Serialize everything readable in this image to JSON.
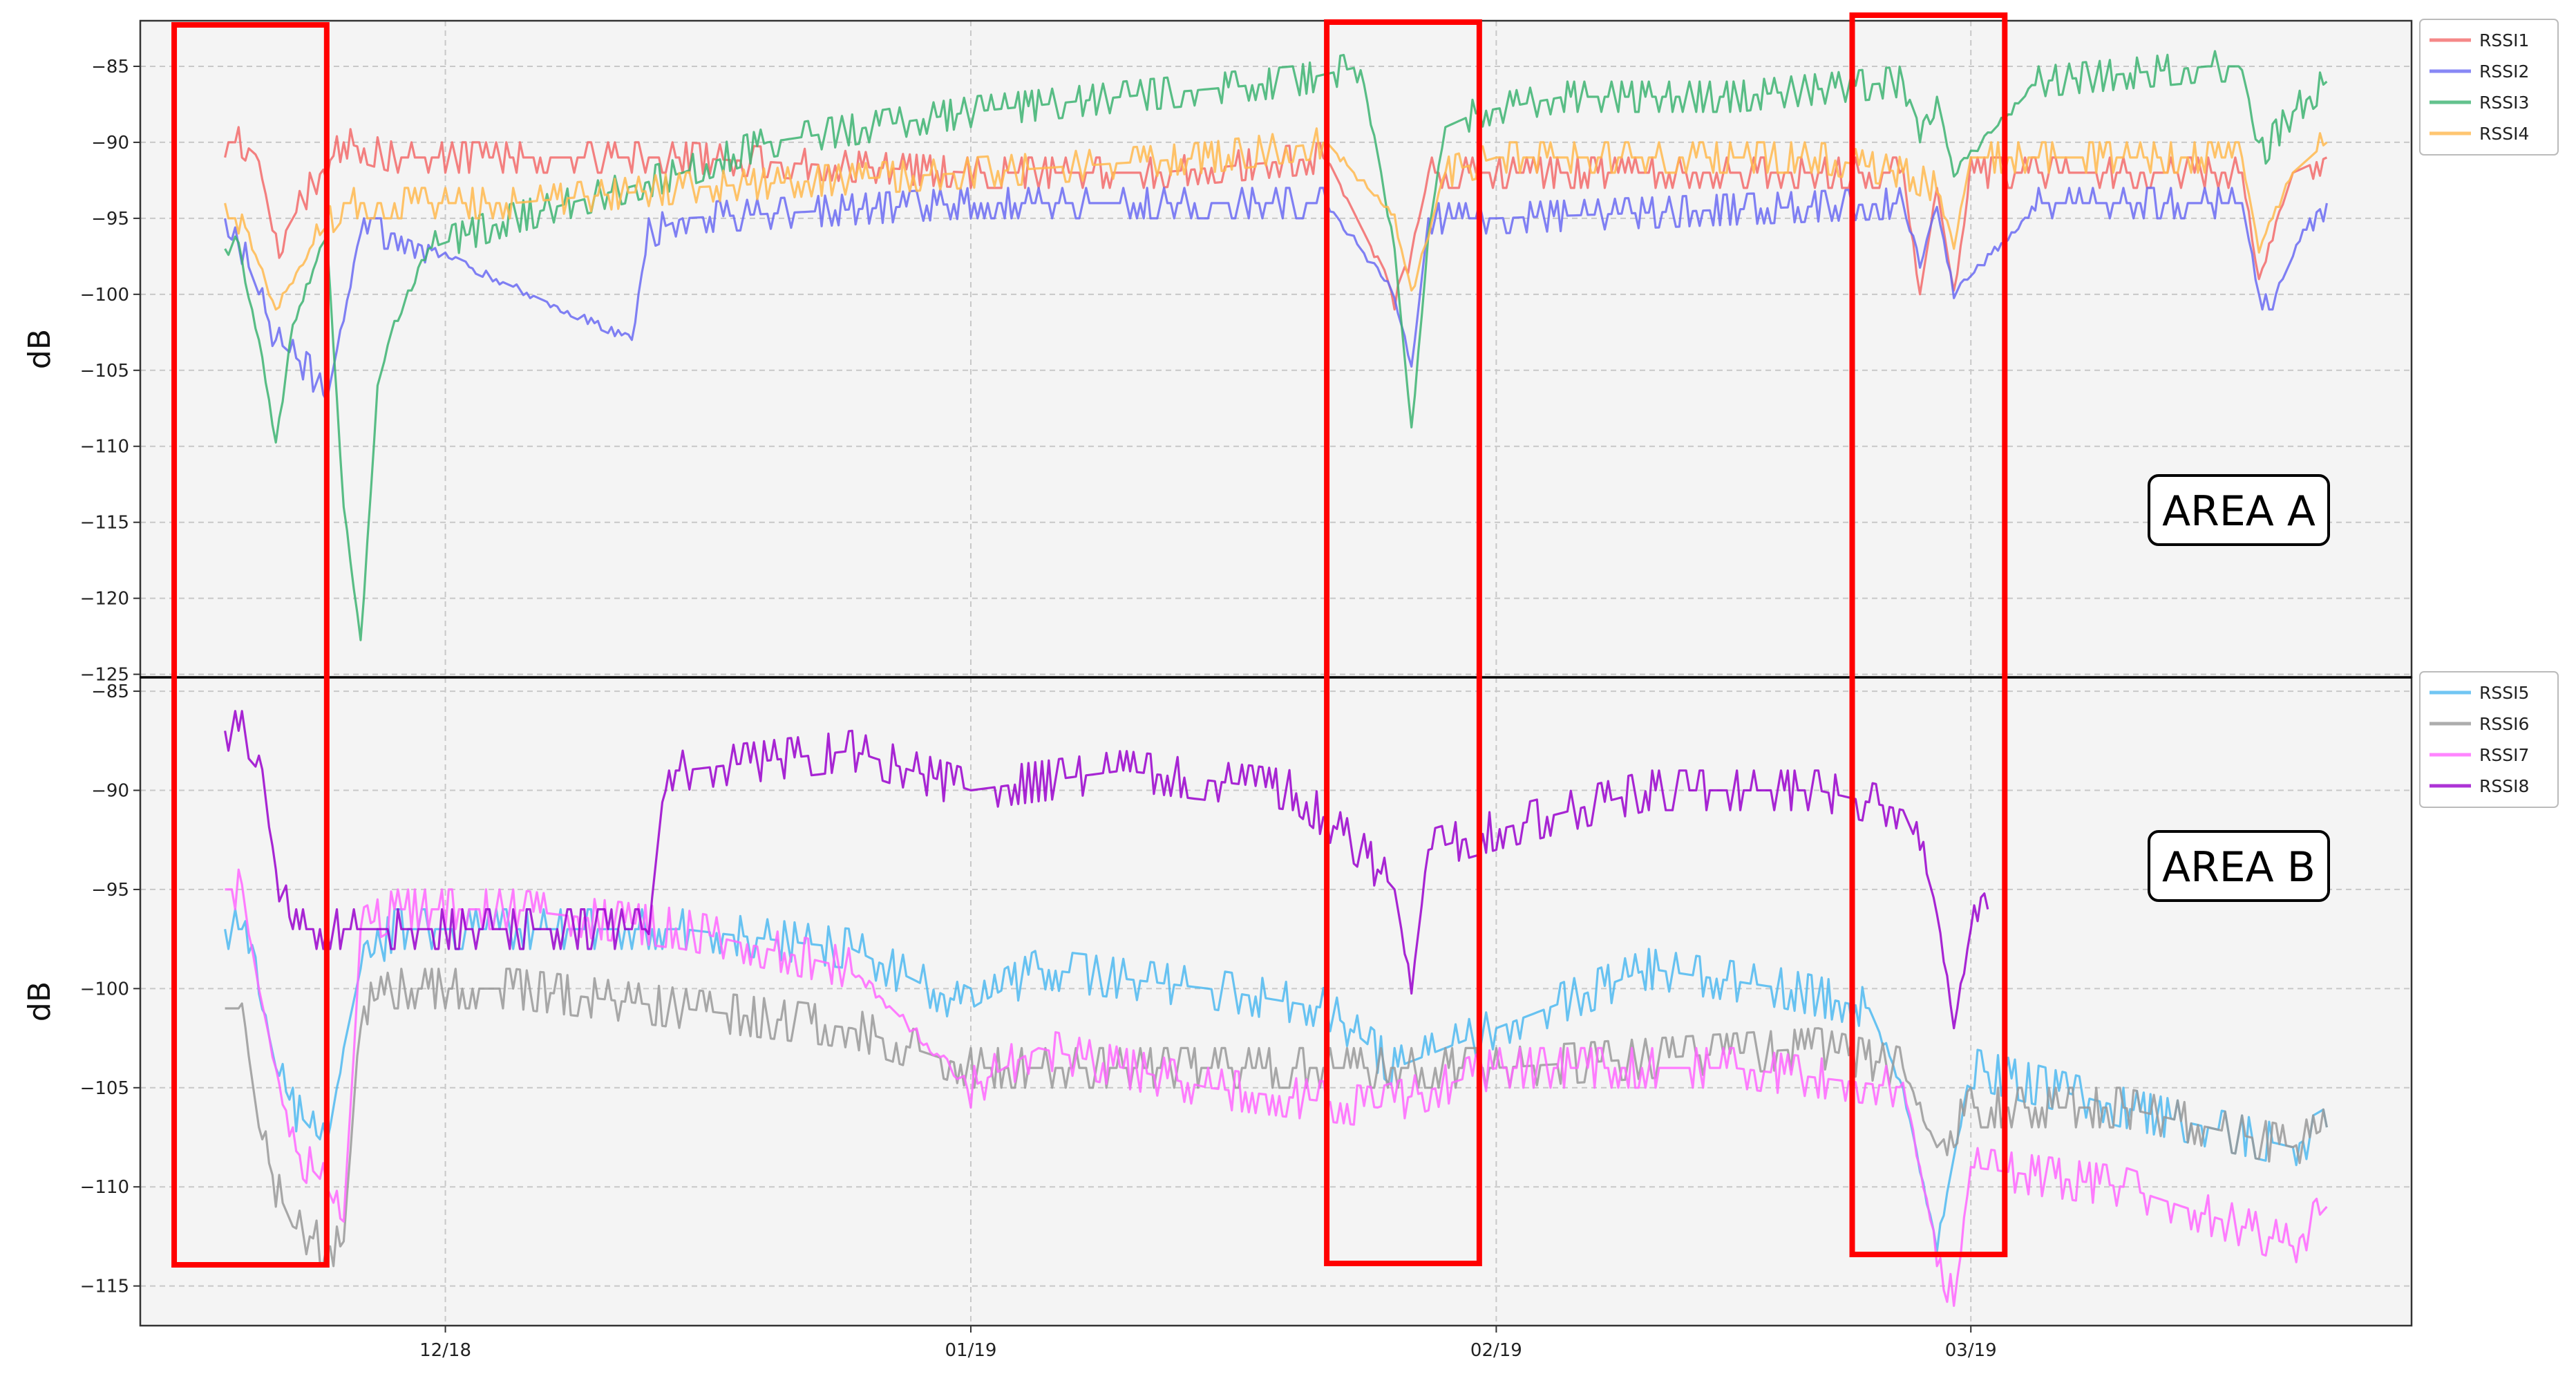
{
  "chart_data": [
    {
      "type": "line",
      "ylabel": "dB",
      "ylim": [
        -125,
        -82
      ],
      "yticks": [
        -85,
        -90,
        -95,
        -100,
        -105,
        -110,
        -115,
        -120,
        -125
      ],
      "xlim": [
        "2018-11-13",
        "2019-03-27"
      ],
      "xticks": [
        {
          "date": "2018-12-01",
          "label": "12/18"
        },
        {
          "date": "2019-01-01",
          "label": "01/19"
        },
        {
          "date": "2019-02-01",
          "label": "02/19"
        },
        {
          "date": "2019-03-01",
          "label": "03/19"
        }
      ],
      "grid": true,
      "legend_position": "outside-top-right",
      "annotation": "AREA A",
      "series": [
        {
          "name": "RSSI1",
          "color": "#f26a6a",
          "x": [
            "2018-11-18",
            "2018-11-19",
            "2018-11-20",
            "2018-11-21",
            "2018-11-22",
            "2018-11-23",
            "2018-11-25",
            "2018-11-28",
            "2018-12-05",
            "2018-12-15",
            "2019-01-01",
            "2019-01-12",
            "2019-01-22",
            "2019-01-26",
            "2019-01-27",
            "2019-01-28",
            "2019-02-01",
            "2019-02-25",
            "2019-02-26",
            "2019-02-27",
            "2019-02-28",
            "2019-03-01",
            "2019-03-05",
            "2019-03-10",
            "2019-03-17",
            "2019-03-18",
            "2019-03-20",
            "2019-03-22"
          ],
          "y": [
            -90,
            -90,
            -91,
            -97,
            -95,
            -93,
            -90,
            -91,
            -91,
            -91,
            -92,
            -92,
            -91,
            -100,
            -97,
            -92,
            -92,
            -92,
            -100,
            -93,
            -100,
            -92,
            -92,
            -92,
            -92,
            -99,
            -92,
            -91
          ]
        },
        {
          "name": "RSSI2",
          "color": "#6a6af2",
          "x": [
            "2018-11-18",
            "2018-11-19",
            "2018-11-20",
            "2018-11-21",
            "2018-11-22",
            "2018-11-23",
            "2018-11-24",
            "2018-11-26",
            "2018-11-28",
            "2018-11-30",
            "2018-12-12",
            "2018-12-13",
            "2018-12-15",
            "2019-01-01",
            "2019-01-12",
            "2019-01-22",
            "2019-01-26",
            "2019-01-27",
            "2019-01-28",
            "2019-02-01",
            "2019-02-25",
            "2019-02-26",
            "2019-02-27",
            "2019-02-28",
            "2019-03-05",
            "2019-03-17",
            "2019-03-18",
            "2019-03-19",
            "2019-03-21",
            "2019-03-22"
          ],
          "y": [
            -96,
            -97,
            -100,
            -103,
            -104,
            -105,
            -107,
            -96,
            -96,
            -97,
            -103,
            -96,
            -95,
            -94,
            -94,
            -94,
            -100,
            -105,
            -95,
            -95,
            -94,
            -98,
            -94,
            -100,
            -94,
            -94,
            -100,
            -100,
            -95,
            -94
          ]
        },
        {
          "name": "RSSI3",
          "color": "#3cb371",
          "x": [
            "2018-11-18",
            "2018-11-19",
            "2018-11-20",
            "2018-11-21",
            "2018-11-22",
            "2018-11-24",
            "2018-11-25",
            "2018-11-26",
            "2018-11-27",
            "2018-11-28",
            "2018-11-30",
            "2018-12-05",
            "2018-12-15",
            "2018-12-20",
            "2019-01-01",
            "2019-01-10",
            "2019-01-20",
            "2019-01-24",
            "2019-01-26",
            "2019-01-27",
            "2019-01-28",
            "2019-01-29",
            "2019-01-31",
            "2019-02-05",
            "2019-02-15",
            "2019-02-25",
            "2019-02-26",
            "2019-02-27",
            "2019-02-28",
            "2019-03-05",
            "2019-03-15",
            "2019-03-17",
            "2019-03-18",
            "2019-03-20",
            "2019-03-22"
          ],
          "y": [
            -96,
            -98,
            -103,
            -110,
            -102,
            -96,
            -114,
            -123,
            -106,
            -102,
            -97,
            -95,
            -92,
            -90,
            -88,
            -87,
            -86,
            -85,
            -97,
            -109,
            -96,
            -89,
            -88,
            -87,
            -87,
            -86,
            -89,
            -87,
            -92,
            -86,
            -85,
            -85,
            -91,
            -88,
            -86
          ]
        },
        {
          "name": "RSSI4",
          "color": "#ffb84d",
          "x": [
            "2018-11-18",
            "2018-11-19",
            "2018-11-21",
            "2018-11-23",
            "2018-11-25",
            "2018-11-28",
            "2018-12-05",
            "2018-12-15",
            "2019-01-01",
            "2019-01-15",
            "2019-01-22",
            "2019-01-26",
            "2019-01-27",
            "2019-01-29",
            "2019-02-01",
            "2019-02-20",
            "2019-02-25",
            "2019-02-27",
            "2019-02-28",
            "2019-03-01",
            "2019-03-10",
            "2019-03-17",
            "2019-03-18",
            "2019-03-20",
            "2019-03-22"
          ],
          "y": [
            -95,
            -95,
            -101,
            -97,
            -94,
            -94,
            -94,
            -93,
            -92,
            -91,
            -90,
            -95,
            -100,
            -92,
            -91,
            -91,
            -92,
            -93,
            -97,
            -91,
            -91,
            -91,
            -97,
            -92,
            -90
          ]
        }
      ]
    },
    {
      "type": "line",
      "ylabel": "dB",
      "ylim": [
        -117,
        -85
      ],
      "yticks": [
        -85,
        -90,
        -95,
        -100,
        -105,
        -110,
        -115
      ],
      "xlim": [
        "2018-11-13",
        "2019-03-27"
      ],
      "xticks": [
        {
          "date": "2018-12-01",
          "label": "12/18"
        },
        {
          "date": "2019-01-01",
          "label": "01/19"
        },
        {
          "date": "2019-02-01",
          "label": "02/19"
        },
        {
          "date": "2019-03-01",
          "label": "03/19"
        }
      ],
      "grid": true,
      "legend_position": "outside-top-right",
      "annotation": "AREA B",
      "series": [
        {
          "name": "RSSI5",
          "color": "#4db8f0",
          "x": [
            "2018-11-18",
            "2018-11-19",
            "2018-11-20",
            "2018-11-21",
            "2018-11-22",
            "2018-11-24",
            "2018-11-25",
            "2018-11-26",
            "2018-11-28",
            "2018-12-05",
            "2018-12-15",
            "2018-12-25",
            "2019-01-01",
            "2019-01-05",
            "2019-01-15",
            "2019-01-22",
            "2019-01-26",
            "2019-02-01",
            "2019-02-10",
            "2019-02-18",
            "2019-02-23",
            "2019-02-25",
            "2019-02-27",
            "2019-03-01",
            "2019-03-10",
            "2019-03-20",
            "2019-03-22"
          ],
          "y": [
            -97,
            -97,
            -100,
            -104,
            -106,
            -108,
            -103,
            -99,
            -97,
            -97,
            -97,
            -98,
            -101,
            -99,
            -100,
            -101,
            -104,
            -102,
            -99,
            -100,
            -101,
            -105,
            -113,
            -104,
            -106,
            -108,
            -107
          ]
        },
        {
          "name": "RSSI6",
          "color": "#999999",
          "x": [
            "2018-11-18",
            "2018-11-19",
            "2018-11-20",
            "2018-11-21",
            "2018-11-22",
            "2018-11-24",
            "2018-11-25",
            "2018-11-26",
            "2018-11-28",
            "2018-12-05",
            "2018-12-15",
            "2018-12-25",
            "2019-01-01",
            "2019-01-15",
            "2019-01-25",
            "2019-02-01",
            "2019-02-20",
            "2019-02-25",
            "2019-02-27",
            "2019-03-01",
            "2019-03-10",
            "2019-03-20",
            "2019-03-22"
          ],
          "y": [
            -101,
            -101,
            -107,
            -110,
            -112,
            -113,
            -113,
            -101,
            -100,
            -100,
            -101,
            -102,
            -104,
            -104,
            -104,
            -104,
            -103,
            -104,
            -108,
            -106,
            -106,
            -108,
            -107
          ]
        },
        {
          "name": "RSSI7",
          "color": "#ff66ff",
          "x": [
            "2018-11-18",
            "2018-11-19",
            "2018-11-20",
            "2018-11-21",
            "2018-11-22",
            "2018-11-24",
            "2018-11-25",
            "2018-11-26",
            "2018-11-28",
            "2018-12-05",
            "2018-12-15",
            "2018-12-25",
            "2019-01-01",
            "2019-01-05",
            "2019-01-15",
            "2019-01-25",
            "2019-02-01",
            "2019-02-15",
            "2019-02-25",
            "2019-02-27",
            "2019-02-28",
            "2019-03-01",
            "2019-03-10",
            "2019-03-17",
            "2019-03-20",
            "2019-03-22"
          ],
          "y": [
            -95,
            -95,
            -100,
            -104,
            -108,
            -110,
            -112,
            -97,
            -96,
            -96,
            -97,
            -99,
            -105,
            -103,
            -105,
            -106,
            -104,
            -104,
            -105,
            -113,
            -116,
            -109,
            -110,
            -112,
            -113,
            -111
          ]
        },
        {
          "name": "RSSI8",
          "color": "#9900cc",
          "x": [
            "2018-11-18",
            "2018-11-19",
            "2018-11-20",
            "2018-11-21",
            "2018-11-22",
            "2018-12-13",
            "2018-12-14",
            "2018-12-15",
            "2018-12-25",
            "2019-01-01",
            "2019-01-10",
            "2019-01-20",
            "2019-01-24",
            "2019-01-26",
            "2019-01-27",
            "2019-01-28",
            "2019-02-01",
            "2019-02-10",
            "2019-02-20",
            "2019-02-25",
            "2019-02-26",
            "2019-02-27",
            "2019-02-28",
            "2019-03-01",
            "2019-03-02"
          ],
          "y": [
            -87,
            -87,
            -88,
            -94,
            -97,
            -97,
            -89,
            -89,
            -88,
            -90,
            -89,
            -90,
            -93,
            -95,
            -100,
            -93,
            -92,
            -90,
            -90,
            -91,
            -93,
            -96,
            -102,
            -97,
            -96
          ]
        }
      ]
    }
  ],
  "highlight_boxes": [
    {
      "start": "2018-11-15",
      "end": "2018-11-24"
    },
    {
      "start": "2019-01-22",
      "end": "2019-01-31"
    },
    {
      "start": "2019-02-22",
      "end": "2019-03-03"
    }
  ],
  "colors": {
    "highlight": "#ff0000",
    "plot_background": "#f4f4f4",
    "grid": "#c8c8c8"
  }
}
